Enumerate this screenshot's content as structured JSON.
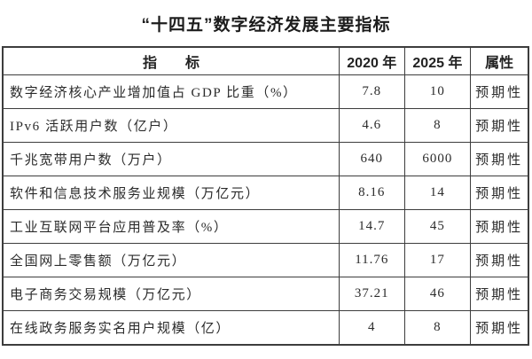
{
  "title": "“十四五”数字经济发展主要指标",
  "table": {
    "headers": {
      "indicator": "指　　标",
      "y2020": "2020 年",
      "y2025": "2025 年",
      "attribute": "属性"
    },
    "rows": [
      {
        "indicator": "数字经济核心产业增加值占 GDP 比重（%）",
        "y2020": "7.8",
        "y2025": "10",
        "attribute": "预期性"
      },
      {
        "indicator": "IPv6 活跃用户数（亿户）",
        "y2020": "4.6",
        "y2025": "8",
        "attribute": "预期性"
      },
      {
        "indicator": "千兆宽带用户数（万户）",
        "y2020": "640",
        "y2025": "6000",
        "attribute": "预期性"
      },
      {
        "indicator": "软件和信息技术服务业规模（万亿元）",
        "y2020": "8.16",
        "y2025": "14",
        "attribute": "预期性"
      },
      {
        "indicator": "工业互联网平台应用普及率（%）",
        "y2020": "14.7",
        "y2025": "45",
        "attribute": "预期性"
      },
      {
        "indicator": "全国网上零售额（万亿元）",
        "y2020": "11.76",
        "y2025": "17",
        "attribute": "预期性"
      },
      {
        "indicator": "电子商务交易规模（万亿元）",
        "y2020": "37.21",
        "y2025": "46",
        "attribute": "预期性"
      },
      {
        "indicator": "在线政务服务实名用户规模（亿）",
        "y2020": "4",
        "y2025": "8",
        "attribute": "预期性"
      }
    ]
  },
  "colors": {
    "background": "#ffffff",
    "border": "#3d3d3d",
    "text": "#2b2b2b",
    "title_text": "#1c1c1c"
  }
}
